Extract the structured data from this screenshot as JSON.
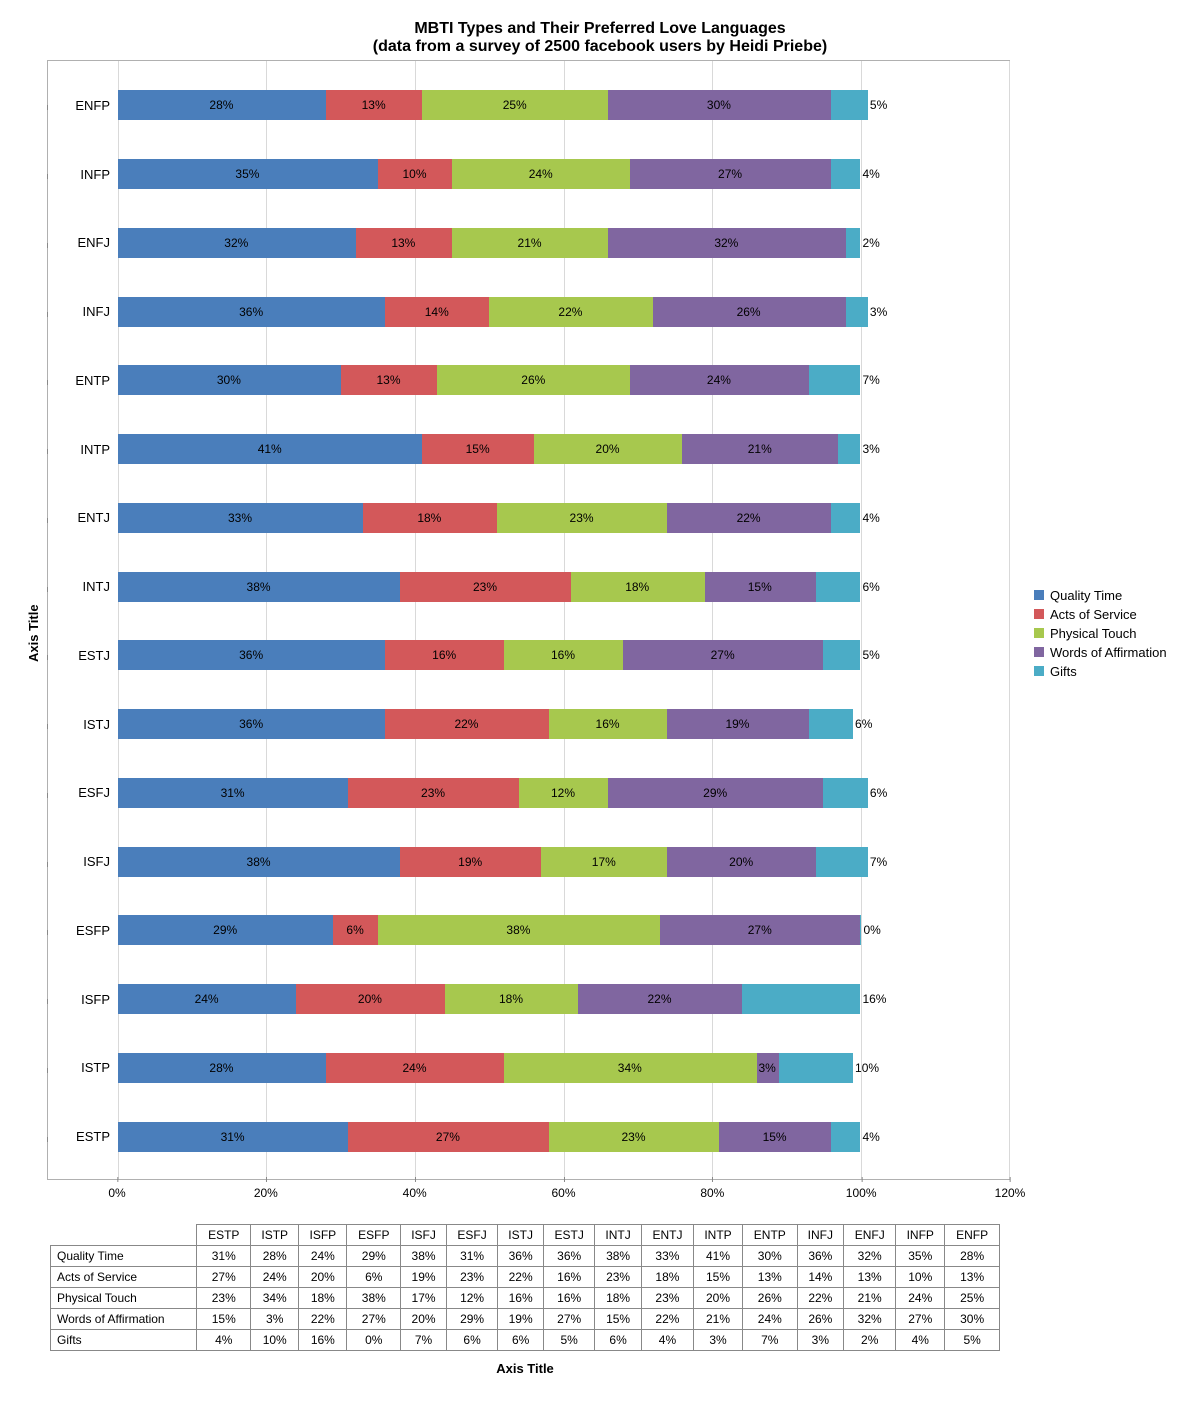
{
  "title_line1": "MBTI Types and Their Preferred Love Languages",
  "title_line2": "(data from a survey of 2500 facebook users by Heidi Priebe)",
  "title_fontsize": 16,
  "yaxis_title": "Axis Title",
  "xaxis_title": "Axis Title",
  "background_color": "#ffffff",
  "grid_color": "#d9d9d9",
  "border_color": "#b0b0b0",
  "label_fontsize": 13,
  "value_fontsize": 12,
  "series": [
    {
      "name": "Quality Time",
      "color": "#4a7ebb"
    },
    {
      "name": "Acts of Service",
      "color": "#d3585a"
    },
    {
      "name": "Physical Touch",
      "color": "#a7c84e"
    },
    {
      "name": "Words of Affirmation",
      "color": "#8066a0"
    },
    {
      "name": "Gifts",
      "color": "#4bacc6"
    }
  ],
  "xlim": [
    0,
    120
  ],
  "xticks": [
    0,
    20,
    40,
    60,
    80,
    100,
    120
  ],
  "xtick_labels": [
    "0%",
    "20%",
    "40%",
    "60%",
    "80%",
    "100%",
    "120%"
  ],
  "table_order": [
    "ESTP",
    "ISTP",
    "ISFP",
    "ESFP",
    "ISFJ",
    "ESFJ",
    "ISTJ",
    "ESTJ",
    "INTJ",
    "ENTJ",
    "INTP",
    "ENTP",
    "INFJ",
    "ENFJ",
    "INFP",
    "ENFP"
  ],
  "chart_order": [
    "ENFP",
    "INFP",
    "ENFJ",
    "INFJ",
    "ENTP",
    "INTP",
    "ENTJ",
    "INTJ",
    "ESTJ",
    "ISTJ",
    "ESFJ",
    "ISFJ",
    "ESFP",
    "ISFP",
    "ISTP",
    "ESTP"
  ],
  "data": {
    "ESTP": {
      "Quality Time": 31,
      "Acts of Service": 27,
      "Physical Touch": 23,
      "Words of Affirmation": 15,
      "Gifts": 4
    },
    "ISTP": {
      "Quality Time": 28,
      "Acts of Service": 24,
      "Physical Touch": 34,
      "Words of Affirmation": 3,
      "Gifts": 10
    },
    "ISFP": {
      "Quality Time": 24,
      "Acts of Service": 20,
      "Physical Touch": 18,
      "Words of Affirmation": 22,
      "Gifts": 16
    },
    "ESFP": {
      "Quality Time": 29,
      "Acts of Service": 6,
      "Physical Touch": 38,
      "Words of Affirmation": 27,
      "Gifts": 0
    },
    "ISFJ": {
      "Quality Time": 38,
      "Acts of Service": 19,
      "Physical Touch": 17,
      "Words of Affirmation": 20,
      "Gifts": 7
    },
    "ESFJ": {
      "Quality Time": 31,
      "Acts of Service": 23,
      "Physical Touch": 12,
      "Words of Affirmation": 29,
      "Gifts": 6
    },
    "ISTJ": {
      "Quality Time": 36,
      "Acts of Service": 22,
      "Physical Touch": 16,
      "Words of Affirmation": 19,
      "Gifts": 6
    },
    "ESTJ": {
      "Quality Time": 36,
      "Acts of Service": 16,
      "Physical Touch": 16,
      "Words of Affirmation": 27,
      "Gifts": 5
    },
    "INTJ": {
      "Quality Time": 38,
      "Acts of Service": 23,
      "Physical Touch": 18,
      "Words of Affirmation": 15,
      "Gifts": 6
    },
    "ENTJ": {
      "Quality Time": 33,
      "Acts of Service": 18,
      "Physical Touch": 23,
      "Words of Affirmation": 22,
      "Gifts": 4
    },
    "INTP": {
      "Quality Time": 41,
      "Acts of Service": 15,
      "Physical Touch": 20,
      "Words of Affirmation": 21,
      "Gifts": 3
    },
    "ENTP": {
      "Quality Time": 30,
      "Acts of Service": 13,
      "Physical Touch": 26,
      "Words of Affirmation": 24,
      "Gifts": 7
    },
    "INFJ": {
      "Quality Time": 36,
      "Acts of Service": 14,
      "Physical Touch": 22,
      "Words of Affirmation": 26,
      "Gifts": 3
    },
    "ENFJ": {
      "Quality Time": 32,
      "Acts of Service": 13,
      "Physical Touch": 21,
      "Words of Affirmation": 32,
      "Gifts": 2
    },
    "INFP": {
      "Quality Time": 35,
      "Acts of Service": 10,
      "Physical Touch": 24,
      "Words of Affirmation": 27,
      "Gifts": 4
    },
    "ENFP": {
      "Quality Time": 28,
      "Acts of Service": 13,
      "Physical Touch": 25,
      "Words of Affirmation": 30,
      "Gifts": 5
    }
  }
}
